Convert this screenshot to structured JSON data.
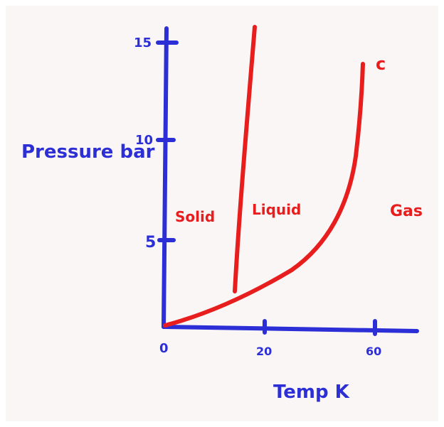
{
  "axes": {
    "y_label": "Pressure bar",
    "x_label": "Temp K",
    "y_ticks": [
      "15",
      "10",
      "5"
    ],
    "x_ticks": [
      "0",
      "20",
      "60"
    ]
  },
  "regions": {
    "solid": "Solid",
    "liquid": "Liquid",
    "gas": "Gas"
  },
  "critical_point": "c"
}
